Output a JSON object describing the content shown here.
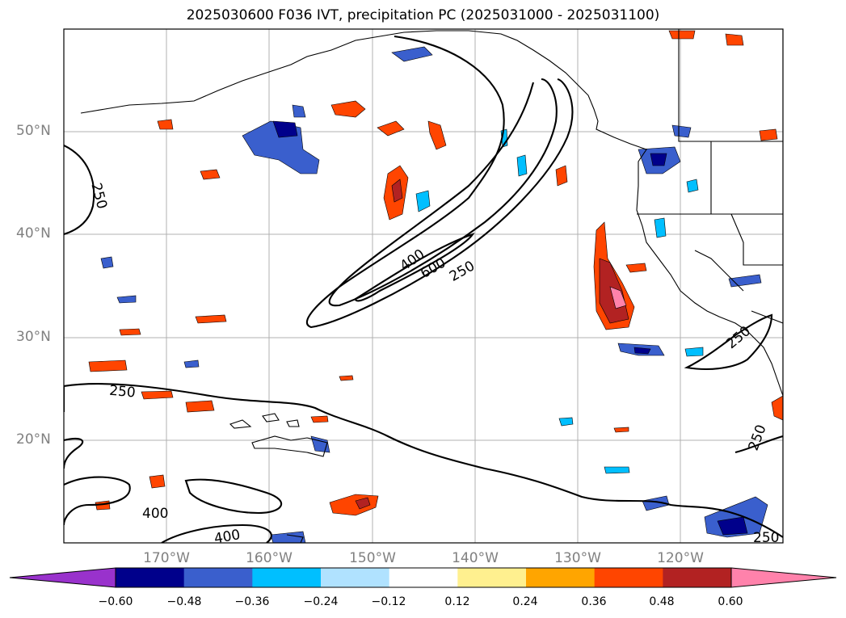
{
  "title": "2025030600 F036 IVT, precipitation PC (2025031000 - 2025031100)",
  "lat_labels": [
    "50°N",
    "40°N",
    "30°N",
    "20°N"
  ],
  "lon_labels": [
    "170°W",
    "160°W",
    "150°W",
    "140°W",
    "130°W",
    "120°W"
  ],
  "contour_labels": [
    "250",
    "400",
    "600",
    "250",
    "250",
    "400",
    "400",
    "250",
    "250",
    "250"
  ],
  "colorbar": {
    "ticks": [
      "−0.60",
      "−0.48",
      "−0.36",
      "−0.24",
      "−0.12",
      "0.12",
      "0.24",
      "0.36",
      "0.48",
      "0.60"
    ],
    "colors": [
      "#9932cc",
      "#00008b",
      "#3a5fcd",
      "#00bfff",
      "#b0e2ff",
      "#ffffff",
      "#fff08f",
      "#ffa500",
      "#ff4500",
      "#b22222",
      "#ff82ab"
    ]
  }
}
